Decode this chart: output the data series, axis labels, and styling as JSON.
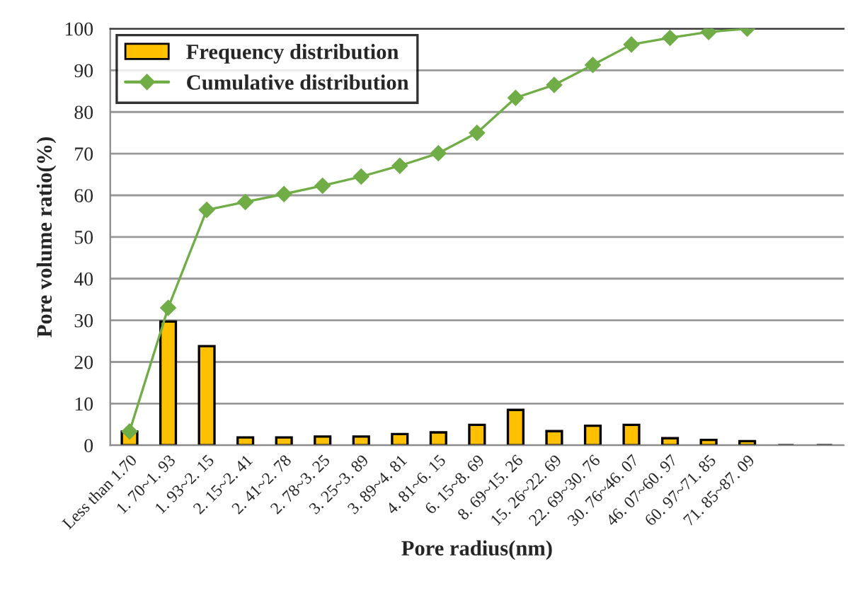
{
  "chart_data": {
    "type": "bar",
    "xlabel": "Pore radius(nm)",
    "ylabel": "Pore volume ratio(%)",
    "categories": [
      "Less than 1.70",
      "1. 70~1. 93",
      "1. 93~2. 15",
      "2. 15~2. 41",
      "2. 41~2. 78",
      "2. 78~3. 25",
      "3. 25~3. 89",
      "3. 89~4. 81",
      "4. 81~6. 15",
      "6. 15~8. 69",
      "8. 69~15. 26",
      "15. 26~22. 69",
      "22. 69~30. 76",
      "30. 76~46. 07",
      "46. 07~60. 97",
      "60. 97~71. 85",
      "71. 85~87. 09",
      null,
      null
    ],
    "series": [
      {
        "name": "Frequency distribution",
        "color": "#ffc000",
        "values": [
          3.3,
          29.7,
          23.8,
          1.9,
          1.9,
          2.1,
          2.1,
          2.7,
          3.1,
          4.9,
          8.5,
          3.4,
          4.7,
          4.9,
          1.7,
          1.3,
          1.0,
          null,
          null
        ]
      },
      {
        "name": "Cumulative distribution",
        "type": "line",
        "color": "#70ad47",
        "marker": "diamond",
        "values": [
          3.3,
          33,
          56.5,
          58.4,
          60.3,
          62.3,
          64.5,
          67.1,
          70.1,
          75,
          83.4,
          86.5,
          91.3,
          96.2,
          97.8,
          99.2,
          100,
          null,
          null
        ]
      }
    ],
    "ylim": [
      0,
      100
    ],
    "yticks": [
      0,
      10,
      20,
      30,
      40,
      50,
      60,
      70,
      80,
      90,
      100
    ],
    "grid": "y",
    "legend": "top left"
  }
}
